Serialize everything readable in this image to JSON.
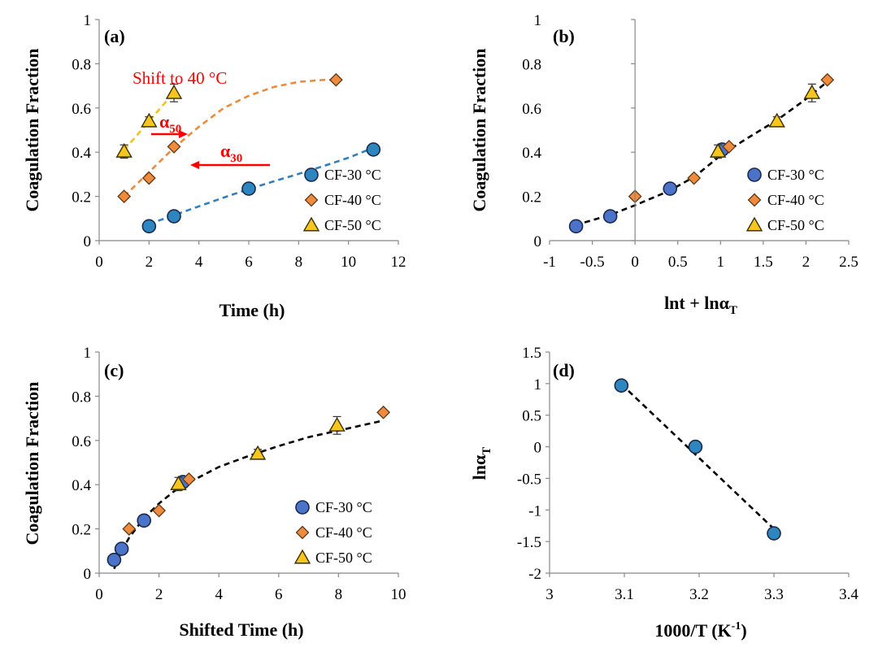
{
  "colors": {
    "cf30": "#4a73c9",
    "cf30_a": "#2e86c1",
    "cf40": "#f08a3c",
    "cf50": "#f6c61e",
    "fit_cf30": "#2f7fc1",
    "fit_cf40": "#ef8a3a",
    "fit_cf50": "#f3c21c",
    "fit_master": "#000000",
    "annotation": "#ff0000"
  },
  "chart_data": [
    {
      "panel": "(a)",
      "type": "scatter",
      "xlabel": "Time (h)",
      "ylabel": "Coagulation Fraction",
      "xlim": [
        0,
        12
      ],
      "ylim": [
        0,
        1
      ],
      "xticks": [
        0,
        2,
        4,
        6,
        8,
        10,
        12
      ],
      "yticks": [
        0,
        0.2,
        0.4,
        0.6,
        0.8,
        1
      ],
      "xtick_labels": [
        "0",
        "2",
        "4",
        "6",
        "8",
        "10",
        "12"
      ],
      "ytick_labels": [
        "0",
        "0.2",
        "0.4",
        "0.6",
        "0.8",
        "1"
      ],
      "legend_position": "bottom-right",
      "series": [
        {
          "name": "CF-30 °C",
          "marker": "circle",
          "color_key": "cf30_a",
          "x": [
            2,
            3,
            6,
            11
          ],
          "y": [
            0.065,
            0.11,
            0.235,
            0.412
          ],
          "err": [
            0,
            0,
            0,
            0
          ]
        },
        {
          "name": "CF-40 °C",
          "marker": "diamond",
          "color_key": "cf40",
          "x": [
            1,
            2,
            3,
            9.5
          ],
          "y": [
            0.2,
            0.283,
            0.425,
            0.727
          ],
          "err": [
            0,
            0,
            0,
            0
          ]
        },
        {
          "name": "CF-50 °C",
          "marker": "triangle",
          "color_key": "cf50",
          "x": [
            1,
            2,
            3
          ],
          "y": [
            0.403,
            0.54,
            0.668
          ],
          "err": [
            0.03,
            0.02,
            0.04
          ]
        }
      ],
      "fits": [
        {
          "color_key": "fit_cf30",
          "x": [
            2,
            3,
            4,
            5,
            6,
            7,
            8,
            9,
            10,
            11
          ],
          "y": [
            0.075,
            0.115,
            0.155,
            0.195,
            0.233,
            0.268,
            0.302,
            0.337,
            0.375,
            0.42
          ]
        },
        {
          "color_key": "fit_cf40",
          "x": [
            1,
            2,
            3,
            4,
            5,
            6,
            7,
            8,
            9,
            9.5
          ],
          "y": [
            0.2,
            0.31,
            0.42,
            0.515,
            0.6,
            0.655,
            0.695,
            0.718,
            0.727,
            0.727
          ]
        },
        {
          "color_key": "fit_cf50",
          "x": [
            1,
            2,
            3
          ],
          "y": [
            0.41,
            0.54,
            0.67
          ]
        }
      ],
      "annotations": {
        "shift_text": "Shift to 40 °C",
        "alpha50_base": "α",
        "alpha50_sub": "50",
        "alpha30_base": "α",
        "alpha30_sub": "30"
      }
    },
    {
      "panel": "(b)",
      "type": "scatter",
      "xlabel_base": "lnt + lnα",
      "xlabel_sub": "T",
      "ylabel": "Coagulation Fraction",
      "xlim": [
        -1,
        2.5
      ],
      "ylim": [
        0,
        1
      ],
      "xticks": [
        -1,
        -0.5,
        0,
        0.5,
        1,
        1.5,
        2,
        2.5
      ],
      "yticks": [
        0,
        0.2,
        0.4,
        0.6,
        0.8,
        1
      ],
      "xtick_labels": [
        "-1",
        "-0.5",
        "0",
        "0.5",
        "1",
        "1.5",
        "2",
        "2.5"
      ],
      "ytick_labels": [
        "0",
        "0.2",
        "0.4",
        "0.6",
        "0.8",
        "1"
      ],
      "legend_position": "bottom-right",
      "series": [
        {
          "name": "CF-30 °C",
          "marker": "circle",
          "color_key": "cf30",
          "x": [
            -0.69,
            -0.29,
            0.41,
            1.02
          ],
          "y": [
            0.065,
            0.11,
            0.235,
            0.412
          ],
          "err": [
            0,
            0,
            0,
            0
          ]
        },
        {
          "name": "CF-40 °C",
          "marker": "diamond",
          "color_key": "cf40",
          "x": [
            0,
            0.69,
            1.1,
            2.25
          ],
          "y": [
            0.2,
            0.283,
            0.425,
            0.727
          ],
          "err": [
            0,
            0,
            0,
            0
          ]
        },
        {
          "name": "CF-50 °C",
          "marker": "triangle",
          "color_key": "cf50",
          "x": [
            0.97,
            1.66,
            2.07
          ],
          "y": [
            0.403,
            0.54,
            0.668
          ],
          "err": [
            0.03,
            0.02,
            0.04
          ]
        }
      ],
      "fits": [
        {
          "color_key": "fit_master",
          "x": [
            -0.7,
            -0.3,
            0,
            0.4,
            0.7,
            1.0,
            1.3,
            1.66,
            2.0,
            2.27
          ],
          "y": [
            0.07,
            0.115,
            0.16,
            0.225,
            0.29,
            0.385,
            0.46,
            0.545,
            0.64,
            0.725
          ]
        }
      ]
    },
    {
      "panel": "(c)",
      "type": "scatter",
      "xlabel": "Shifted Time (h)",
      "ylabel": "Coagulation Fraction",
      "xlim": [
        0,
        10
      ],
      "ylim": [
        0,
        1
      ],
      "xticks": [
        0,
        2,
        4,
        6,
        8,
        10
      ],
      "yticks": [
        0,
        0.2,
        0.4,
        0.6,
        0.8,
        1
      ],
      "xtick_labels": [
        "0",
        "2",
        "4",
        "6",
        "8",
        "10"
      ],
      "ytick_labels": [
        "0",
        "0.2",
        "0.4",
        "0.6",
        "0.8",
        "1"
      ],
      "legend_position": "bottom-right",
      "series": [
        {
          "name": "CF-30 °C",
          "marker": "circle",
          "color_key": "cf30",
          "x": [
            0.5,
            0.75,
            1.5,
            2.8
          ],
          "y": [
            0.06,
            0.11,
            0.238,
            0.412
          ],
          "err": [
            0,
            0,
            0,
            0
          ]
        },
        {
          "name": "CF-40 °C",
          "marker": "diamond",
          "color_key": "cf40",
          "x": [
            1,
            2,
            3,
            9.5
          ],
          "y": [
            0.2,
            0.283,
            0.425,
            0.727
          ],
          "err": [
            0,
            0,
            0,
            0
          ]
        },
        {
          "name": "CF-50 °C",
          "marker": "triangle",
          "color_key": "cf50",
          "x": [
            2.65,
            5.3,
            7.95
          ],
          "y": [
            0.403,
            0.54,
            0.668
          ],
          "err": [
            0.03,
            0.02,
            0.04
          ]
        }
      ],
      "fits": [
        {
          "color_key": "fit_master",
          "x": [
            0.5,
            0.75,
            1,
            1.5,
            2,
            2.5,
            3,
            4,
            5,
            6,
            7,
            8,
            9,
            9.5
          ],
          "y": [
            0.02,
            0.1,
            0.16,
            0.25,
            0.315,
            0.37,
            0.41,
            0.48,
            0.53,
            0.575,
            0.615,
            0.645,
            0.675,
            0.69
          ]
        }
      ]
    },
    {
      "panel": "(d)",
      "type": "scatter",
      "xlabel_base": "1000/T (K",
      "xlabel_sup": "-1",
      "xlabel_end": ")",
      "ylabel_base": "lnα",
      "ylabel_sub": "T",
      "xlim": [
        3,
        3.4
      ],
      "ylim": [
        -2,
        1.5
      ],
      "xticks": [
        3,
        3.1,
        3.2,
        3.3,
        3.4
      ],
      "yticks": [
        -2,
        -1.5,
        -1,
        -0.5,
        0,
        0.5,
        1,
        1.5
      ],
      "xtick_labels": [
        "3",
        "3.1",
        "3.2",
        "3.3",
        "3.4"
      ],
      "ytick_labels": [
        "-2",
        "-1.5",
        "-1",
        "-0.5",
        "0",
        "0.5",
        "1",
        "1.5"
      ],
      "series": [
        {
          "name": "",
          "marker": "circle",
          "color_key": "cf30_a",
          "x": [
            3.096,
            3.195,
            3.3
          ],
          "y": [
            0.97,
            0,
            -1.37
          ],
          "err": [
            0,
            0,
            0
          ]
        }
      ],
      "fits": [
        {
          "color_key": "fit_master",
          "x": [
            3.096,
            3.3
          ],
          "y": [
            0.99,
            -1.3
          ]
        }
      ]
    }
  ]
}
